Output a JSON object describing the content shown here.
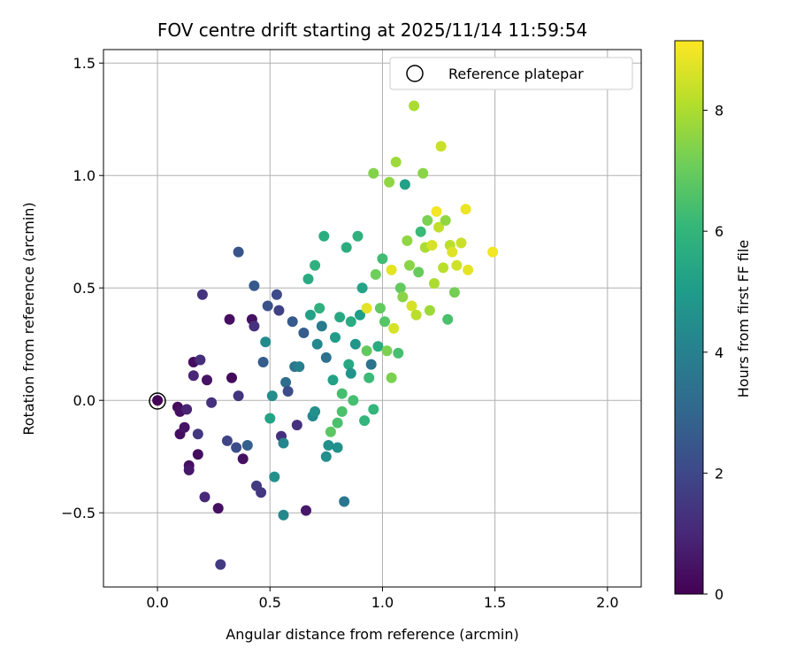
{
  "chart_data": {
    "type": "scatter",
    "title": "FOV centre drift starting at 2025/11/14 11:59:54",
    "xlabel": "Angular distance from reference (arcmin)",
    "ylabel": "Rotation from reference (arcmin)",
    "xlim": [
      -0.24,
      2.15
    ],
    "ylim": [
      -0.83,
      1.56
    ],
    "xticks": [
      0.0,
      0.5,
      1.0,
      1.5,
      2.0
    ],
    "xtick_labels": [
      "0.0",
      "0.5",
      "1.0",
      "1.5",
      "2.0"
    ],
    "yticks": [
      -0.5,
      0.0,
      0.5,
      1.0,
      1.5
    ],
    "ytick_labels": [
      "−0.5",
      "0.0",
      "0.5",
      "1.0",
      "1.5"
    ],
    "grid": true,
    "legend": {
      "position": "top-right",
      "entries": [
        "Reference platepar"
      ]
    },
    "reference_point": {
      "x": 0.0,
      "y": 0.0
    },
    "colorbar": {
      "label": "Hours from first FF file",
      "min": 0,
      "max": 9.15,
      "ticks": [
        0,
        2,
        4,
        6,
        8
      ],
      "tick_labels": [
        "0",
        "2",
        "4",
        "6",
        "8"
      ],
      "colormap": "viridis",
      "colors": [
        "#440154",
        "#482878",
        "#3e4989",
        "#31688e",
        "#26828e",
        "#1f9e89",
        "#35b779",
        "#6ece58",
        "#b5de2b",
        "#fde725"
      ]
    },
    "points": [
      [
        0.0,
        0.0,
        0.1
      ],
      [
        0.09,
        -0.03,
        0.2
      ],
      [
        0.1,
        -0.05,
        0.4
      ],
      [
        0.1,
        -0.15,
        0.3
      ],
      [
        0.12,
        -0.12,
        0.5
      ],
      [
        0.13,
        -0.04,
        0.9
      ],
      [
        0.14,
        -0.29,
        0.4
      ],
      [
        0.14,
        -0.31,
        0.6
      ],
      [
        0.16,
        0.17,
        0.3
      ],
      [
        0.16,
        0.11,
        1.0
      ],
      [
        0.18,
        -0.24,
        0.3
      ],
      [
        0.18,
        -0.15,
        1.5
      ],
      [
        0.19,
        0.18,
        1.2
      ],
      [
        0.2,
        0.47,
        1.4
      ],
      [
        0.21,
        -0.43,
        1.1
      ],
      [
        0.22,
        0.09,
        0.5
      ],
      [
        0.24,
        -0.01,
        1.3
      ],
      [
        0.27,
        -0.48,
        0.4
      ],
      [
        0.28,
        -0.73,
        1.6
      ],
      [
        0.31,
        -0.18,
        1.9
      ],
      [
        0.32,
        0.36,
        0.4
      ],
      [
        0.33,
        0.1,
        0.2
      ],
      [
        0.35,
        -0.21,
        2.2
      ],
      [
        0.36,
        0.66,
        2.4
      ],
      [
        0.38,
        -0.26,
        0.4
      ],
      [
        0.4,
        -0.2,
        2.8
      ],
      [
        0.42,
        0.36,
        0.4
      ],
      [
        0.43,
        0.51,
        2.6
      ],
      [
        0.43,
        0.33,
        1.3
      ],
      [
        0.44,
        -0.38,
        1.6
      ],
      [
        0.46,
        -0.41,
        1.5
      ],
      [
        0.47,
        0.17,
        2.7
      ],
      [
        0.48,
        0.26,
        4.4
      ],
      [
        0.49,
        0.42,
        2.3
      ],
      [
        0.5,
        -0.08,
        5.3
      ],
      [
        0.51,
        0.02,
        4.5
      ],
      [
        0.52,
        -0.34,
        4.6
      ],
      [
        0.53,
        0.47,
        2.1
      ],
      [
        0.54,
        0.4,
        1.8
      ],
      [
        0.55,
        -0.16,
        1.3
      ],
      [
        0.56,
        -0.51,
        4.3
      ],
      [
        0.56,
        -0.19,
        4.2
      ],
      [
        0.57,
        0.08,
        3.2
      ],
      [
        0.58,
        0.04,
        2.1
      ],
      [
        0.6,
        0.35,
        2.6
      ],
      [
        0.61,
        0.15,
        3.6
      ],
      [
        0.62,
        -0.11,
        1.3
      ],
      [
        0.63,
        0.15,
        4.0
      ],
      [
        0.65,
        0.3,
        2.7
      ],
      [
        0.66,
        -0.49,
        0.6
      ],
      [
        0.67,
        0.54,
        5.6
      ],
      [
        0.68,
        0.38,
        5.2
      ],
      [
        0.69,
        -0.07,
        4.3
      ],
      [
        0.7,
        0.6,
        5.8
      ],
      [
        0.71,
        0.25,
        4.3
      ],
      [
        0.72,
        0.41,
        5.8
      ],
      [
        0.73,
        0.33,
        3.8
      ],
      [
        0.74,
        0.73,
        5.7
      ],
      [
        0.75,
        0.19,
        3.4
      ],
      [
        0.76,
        -0.2,
        4.6
      ],
      [
        0.77,
        -0.14,
        6.8
      ],
      [
        0.78,
        0.09,
        5.2
      ],
      [
        0.79,
        0.28,
        5.0
      ],
      [
        0.8,
        -0.21,
        4.6
      ],
      [
        0.81,
        0.37,
        5.5
      ],
      [
        0.82,
        -0.05,
        6.5
      ],
      [
        0.83,
        -0.45,
        3.6
      ],
      [
        0.84,
        0.68,
        5.7
      ],
      [
        0.85,
        0.16,
        5.5
      ],
      [
        0.86,
        0.12,
        4.7
      ],
      [
        0.87,
        0.0,
        6.4
      ],
      [
        0.88,
        0.25,
        4.8
      ],
      [
        0.89,
        0.73,
        5.8
      ],
      [
        0.9,
        0.38,
        5.1
      ],
      [
        0.91,
        0.5,
        5.3
      ],
      [
        0.92,
        -0.09,
        6.0
      ],
      [
        0.93,
        0.22,
        6.9
      ],
      [
        0.94,
        0.1,
        6.2
      ],
      [
        0.95,
        0.16,
        3.5
      ],
      [
        0.96,
        1.01,
        7.4
      ],
      [
        0.97,
        0.56,
        7.1
      ],
      [
        0.98,
        0.24,
        5.6
      ],
      [
        0.99,
        0.41,
        6.9
      ],
      [
        1.0,
        0.63,
        6.3
      ],
      [
        1.01,
        0.35,
        6.7
      ],
      [
        1.02,
        0.22,
        7.3
      ],
      [
        1.03,
        0.97,
        7.6
      ],
      [
        1.04,
        0.1,
        7.3
      ],
      [
        1.04,
        0.58,
        8.8
      ],
      [
        1.05,
        0.32,
        8.6
      ],
      [
        1.06,
        1.06,
        7.8
      ],
      [
        1.07,
        0.21,
        6.4
      ],
      [
        1.08,
        0.5,
        6.9
      ],
      [
        1.09,
        0.46,
        7.5
      ],
      [
        1.1,
        0.96,
        5.2
      ],
      [
        1.11,
        0.71,
        7.6
      ],
      [
        1.12,
        0.6,
        7.5
      ],
      [
        1.13,
        0.42,
        8.6
      ],
      [
        1.14,
        1.31,
        8.0
      ],
      [
        1.15,
        0.38,
        8.2
      ],
      [
        1.16,
        0.57,
        7.0
      ],
      [
        1.17,
        0.75,
        6.2
      ],
      [
        1.18,
        1.01,
        7.5
      ],
      [
        1.19,
        0.68,
        8.0
      ],
      [
        1.2,
        0.8,
        7.3
      ],
      [
        1.21,
        0.4,
        7.8
      ],
      [
        1.22,
        0.69,
        8.6
      ],
      [
        1.23,
        0.52,
        8.0
      ],
      [
        1.24,
        0.84,
        9.0
      ],
      [
        1.25,
        0.77,
        8.3
      ],
      [
        1.26,
        1.13,
        8.4
      ],
      [
        1.27,
        0.59,
        8.2
      ],
      [
        1.28,
        0.8,
        7.6
      ],
      [
        1.29,
        0.36,
        6.5
      ],
      [
        1.3,
        0.69,
        8.2
      ],
      [
        1.31,
        0.66,
        8.7
      ],
      [
        1.32,
        0.48,
        7.2
      ],
      [
        1.33,
        0.6,
        8.5
      ],
      [
        1.35,
        0.7,
        8.4
      ],
      [
        1.37,
        0.85,
        8.9
      ],
      [
        1.38,
        0.58,
        8.8
      ],
      [
        1.49,
        0.66,
        9.0
      ],
      [
        0.82,
        0.03,
        6.4
      ],
      [
        0.8,
        -0.1,
        6.5
      ],
      [
        0.96,
        -0.04,
        6.0
      ],
      [
        0.75,
        -0.25,
        4.5
      ],
      [
        0.7,
        -0.05,
        4.6
      ],
      [
        0.86,
        0.35,
        5.6
      ],
      [
        0.93,
        0.41,
        8.8
      ],
      [
        0.36,
        0.02,
        1.4
      ]
    ]
  }
}
